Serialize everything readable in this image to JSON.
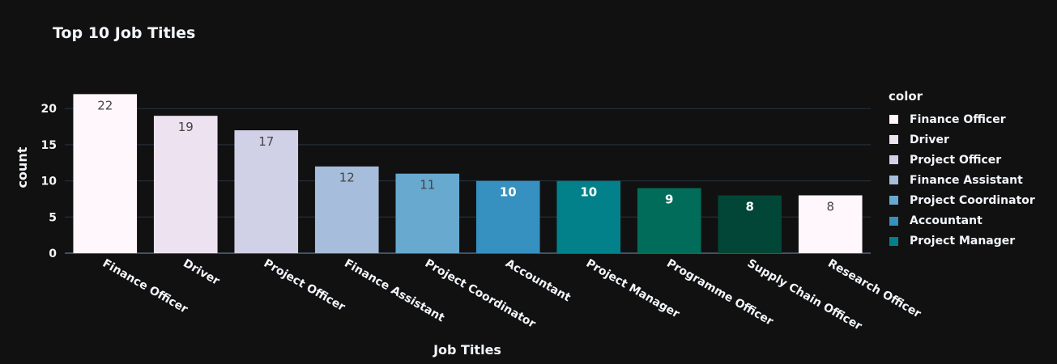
{
  "chart_data": {
    "type": "bar",
    "title": "Top 10 Job Titles",
    "xlabel": "Job Titles",
    "ylabel": "count",
    "legend_title": "color",
    "legend_position": "right",
    "categories": [
      "Finance Officer",
      "Driver",
      "Project Officer",
      "Finance Assistant",
      "Project Coordinator",
      "Accountant",
      "Project Manager",
      "Programme Officer",
      "Supply Chain Officer",
      "Research Officer"
    ],
    "values": [
      22,
      19,
      17,
      12,
      11,
      10,
      10,
      9,
      8,
      8
    ],
    "colors": [
      "#fff7fb",
      "#ece2f0",
      "#d0d1e6",
      "#a6bddb",
      "#67a9cf",
      "#3690c0",
      "#02818a",
      "#016c59",
      "#014636",
      "#fff7fb"
    ],
    "label_colors": [
      "#444444",
      "#444444",
      "#444444",
      "#444444",
      "#444444",
      "#ffffff",
      "#ffffff",
      "#ffffff",
      "#ffffff",
      "#444444"
    ],
    "yticks": [
      0,
      5,
      10,
      15,
      20
    ],
    "ylim": [
      0,
      23.16
    ],
    "grid": true,
    "legend": [
      {
        "label": "Finance Officer",
        "color": "#fff7fb"
      },
      {
        "label": "Driver",
        "color": "#ece2f0"
      },
      {
        "label": "Project Officer",
        "color": "#d0d1e6"
      },
      {
        "label": "Finance Assistant",
        "color": "#a6bddb"
      },
      {
        "label": "Project Coordinator",
        "color": "#67a9cf"
      },
      {
        "label": "Accountant",
        "color": "#3690c0"
      },
      {
        "label": "Project Manager",
        "color": "#02818a"
      }
    ]
  }
}
